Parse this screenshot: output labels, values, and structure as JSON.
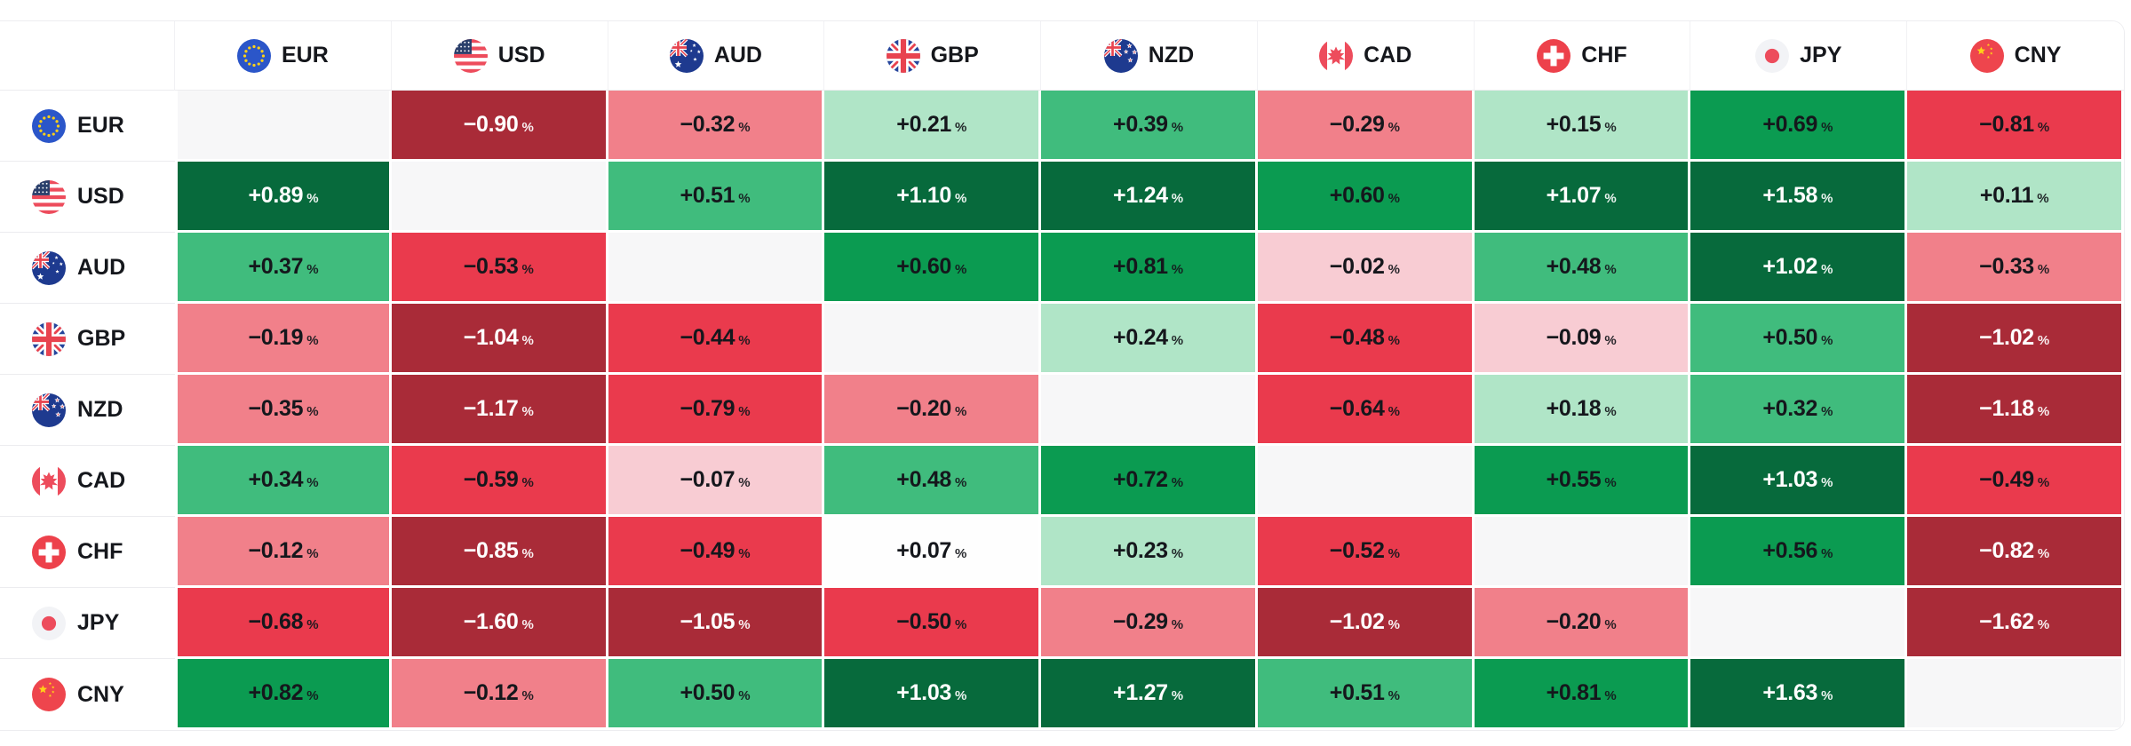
{
  "widget_title": "currency-strength-heatmap",
  "chart_data": {
    "type": "heatmap",
    "title": "",
    "unit": "%",
    "columns": [
      "EUR",
      "USD",
      "AUD",
      "GBP",
      "NZD",
      "CAD",
      "CHF",
      "JPY",
      "CNY"
    ],
    "rows": [
      "EUR",
      "USD",
      "AUD",
      "GBP",
      "NZD",
      "CAD",
      "CHF",
      "JPY",
      "CNY"
    ],
    "values": [
      [
        null,
        -0.9,
        -0.32,
        0.21,
        0.39,
        -0.29,
        0.15,
        0.69,
        -0.81
      ],
      [
        0.89,
        null,
        0.51,
        1.1,
        1.24,
        0.6,
        1.07,
        1.58,
        0.11
      ],
      [
        0.37,
        -0.53,
        null,
        0.6,
        0.81,
        -0.02,
        0.48,
        1.02,
        -0.33
      ],
      [
        -0.19,
        -1.04,
        -0.44,
        null,
        0.24,
        -0.48,
        -0.09,
        0.5,
        -1.02
      ],
      [
        -0.35,
        -1.17,
        -0.79,
        -0.2,
        null,
        -0.64,
        0.18,
        0.32,
        -1.18
      ],
      [
        0.34,
        -0.59,
        -0.07,
        0.48,
        0.72,
        null,
        0.55,
        1.03,
        -0.49
      ],
      [
        -0.12,
        -0.85,
        -0.49,
        0.07,
        0.23,
        -0.52,
        null,
        0.56,
        -0.82
      ],
      [
        -0.68,
        -1.6,
        -1.05,
        -0.5,
        -0.29,
        -1.02,
        -0.2,
        null,
        -1.62
      ],
      [
        0.82,
        -0.12,
        0.5,
        1.03,
        1.27,
        0.51,
        0.81,
        1.63,
        null
      ]
    ],
    "legend_position": "none",
    "grid": false,
    "color_scale": {
      "palette": {
        "dark_green": "#076a3c",
        "strong_green": "#0b9b51",
        "medium_green": "#40bc7d",
        "light_green": "#b0e5c7",
        "neutral_white": "#fefefe",
        "light_pink": "#f8ccd3",
        "salmon": "#f1808a",
        "bright_red": "#ea3a4d",
        "dark_red": "#a92b38",
        "diagonal_blank": "#f7f7f8"
      },
      "stops": [
        {
          "min": 0.85,
          "color": "dark_green"
        },
        {
          "min": 0.55,
          "color": "strong_green"
        },
        {
          "min": 0.3,
          "color": "medium_green"
        },
        {
          "min": 0.1,
          "color": "light_green"
        },
        {
          "min": 0.0,
          "color": "neutral_white"
        },
        {
          "min": -0.095,
          "color": "light_pink"
        },
        {
          "min": -0.395,
          "color": "salmon"
        },
        {
          "min": -0.815,
          "color": "bright_red"
        },
        {
          "min": -99,
          "color": "dark_red"
        }
      ],
      "white_text_buckets": [
        "dark_green",
        "dark_red"
      ]
    }
  },
  "flags": {
    "EUR": "eur-flag-icon",
    "USD": "usd-flag-icon",
    "AUD": "aud-flag-icon",
    "GBP": "gbp-flag-icon",
    "NZD": "nzd-flag-icon",
    "CAD": "cad-flag-icon",
    "CHF": "chf-flag-icon",
    "JPY": "jpy-flag-icon",
    "CNY": "cny-flag-icon"
  },
  "flag_colors": {
    "eu_blue": "#2b56c9",
    "star_yellow": "#ffd117",
    "us_red": "#ed4c5c",
    "us_blue": "#2a3f6b",
    "uk_blue": "#25459c",
    "uk_red": "#e8434f",
    "au_blue": "#1e3a8f",
    "ca_red": "#ed4c5c",
    "ch_red": "#ed414b",
    "jp_white": "#f2f3f6",
    "jp_red": "#ed4c5c",
    "cn_red": "#ee454d"
  }
}
